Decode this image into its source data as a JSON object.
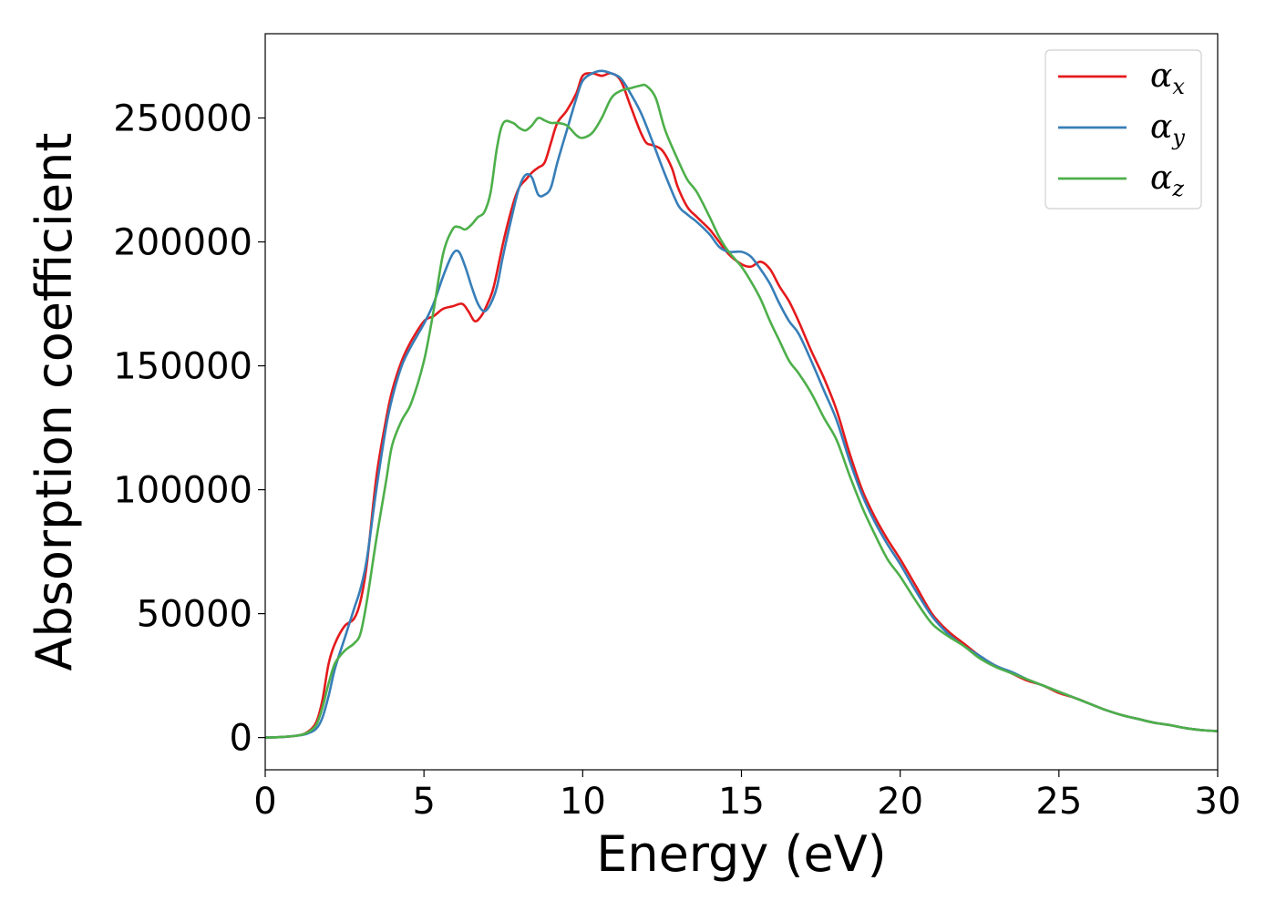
{
  "chart_data": {
    "type": "line",
    "title": "",
    "xlabel": "Energy (eV)",
    "ylabel": "Absorption coefficient",
    "xlim": [
      0,
      30
    ],
    "ylim": [
      -13000,
      284000
    ],
    "xticks": [
      0,
      5,
      10,
      15,
      20,
      25,
      30
    ],
    "yticks": [
      0,
      50000,
      100000,
      150000,
      200000,
      250000
    ],
    "grid": false,
    "legend_position": "top-right",
    "series": [
      {
        "name": "α",
        "subscript": "x",
        "color": "#e41a1c",
        "x": [
          0,
          0.5,
          1.0,
          1.3,
          1.6,
          1.8,
          2.0,
          2.2,
          2.5,
          2.8,
          3.0,
          3.2,
          3.5,
          3.8,
          4.0,
          4.3,
          4.6,
          5.0,
          5.3,
          5.6,
          5.9,
          6.2,
          6.4,
          6.6,
          6.8,
          7.0,
          7.2,
          7.5,
          7.8,
          8.0,
          8.2,
          8.4,
          8.6,
          8.8,
          9.0,
          9.2,
          9.5,
          9.8,
          10.0,
          10.3,
          10.6,
          10.9,
          11.2,
          11.5,
          11.8,
          12.0,
          12.2,
          12.5,
          12.8,
          13.0,
          13.3,
          13.6,
          14.0,
          14.3,
          14.6,
          15.0,
          15.3,
          15.6,
          15.9,
          16.2,
          16.5,
          16.8,
          17.2,
          17.6,
          18.0,
          18.4,
          18.8,
          19.2,
          19.6,
          20.0,
          20.5,
          21.0,
          21.5,
          22.0,
          22.5,
          23.0,
          23.5,
          24.0,
          24.5,
          25.0,
          25.5,
          26.0,
          26.5,
          27.0,
          27.5,
          28.0,
          28.5,
          29.0,
          29.5,
          30.0
        ],
        "y": [
          0,
          200,
          800,
          2000,
          6000,
          15000,
          30000,
          38000,
          45000,
          48000,
          55000,
          70000,
          105000,
          128000,
          140000,
          152000,
          160000,
          168000,
          170000,
          173000,
          174000,
          175000,
          172000,
          168000,
          170000,
          175000,
          182000,
          200000,
          215000,
          222000,
          225000,
          228000,
          230000,
          232000,
          240000,
          248000,
          253000,
          260000,
          267000,
          268000,
          267000,
          268000,
          265000,
          255000,
          245000,
          240000,
          239000,
          237000,
          230000,
          222000,
          214000,
          210000,
          205000,
          200000,
          195000,
          191000,
          190000,
          192000,
          189000,
          182000,
          176000,
          168000,
          156000,
          145000,
          132000,
          115000,
          100000,
          89000,
          80000,
          72000,
          61000,
          50000,
          43000,
          38000,
          33000,
          29000,
          26000,
          23000,
          21000,
          18000,
          16000,
          13500,
          11000,
          9000,
          7500,
          6000,
          5000,
          3800,
          3000,
          2600
        ]
      },
      {
        "name": "α",
        "subscript": "y",
        "color": "#377eb8",
        "x": [
          0,
          0.5,
          1.0,
          1.3,
          1.6,
          1.8,
          2.0,
          2.2,
          2.5,
          2.8,
          3.0,
          3.2,
          3.5,
          3.8,
          4.0,
          4.3,
          4.6,
          5.0,
          5.3,
          5.6,
          5.9,
          6.1,
          6.3,
          6.5,
          6.7,
          6.9,
          7.1,
          7.3,
          7.5,
          7.8,
          8.0,
          8.2,
          8.4,
          8.6,
          8.8,
          9.0,
          9.2,
          9.5,
          9.8,
          10.0,
          10.3,
          10.6,
          10.9,
          11.2,
          11.5,
          11.8,
          12.0,
          12.3,
          12.6,
          13.0,
          13.3,
          13.6,
          14.0,
          14.3,
          14.6,
          15.0,
          15.3,
          15.6,
          15.9,
          16.2,
          16.5,
          16.8,
          17.2,
          17.6,
          18.0,
          18.4,
          18.8,
          19.2,
          19.6,
          20.0,
          20.5,
          21.0,
          21.5,
          22.0,
          22.5,
          23.0,
          23.5,
          24.0,
          24.5,
          25.0,
          25.5,
          26.0,
          26.5,
          27.0,
          27.5,
          28.0,
          28.5,
          29.0,
          29.5,
          30.0
        ],
        "y": [
          0,
          200,
          800,
          1500,
          3500,
          8000,
          17000,
          28000,
          40000,
          52000,
          60000,
          72000,
          100000,
          125000,
          137000,
          150000,
          158000,
          167000,
          175000,
          186000,
          195000,
          196000,
          190000,
          182000,
          175000,
          172000,
          175000,
          182000,
          195000,
          212000,
          222000,
          227000,
          226000,
          219000,
          219000,
          222000,
          232000,
          245000,
          258000,
          265000,
          268000,
          269000,
          268000,
          266000,
          260000,
          253000,
          247000,
          237000,
          227000,
          215000,
          211000,
          208000,
          203000,
          198000,
          196000,
          196000,
          194000,
          189000,
          183000,
          175000,
          168000,
          163000,
          152000,
          140000,
          128000,
          112000,
          98000,
          87000,
          78000,
          70000,
          59000,
          49000,
          42000,
          37000,
          33000,
          29000,
          26500,
          23500,
          21000,
          18500,
          16000,
          13500,
          11000,
          9000,
          7500,
          6000,
          5000,
          3800,
          3000,
          2600
        ]
      },
      {
        "name": "α",
        "subscript": "z",
        "color": "#4daf4a",
        "x": [
          0,
          0.5,
          1.0,
          1.3,
          1.6,
          1.8,
          2.0,
          2.2,
          2.5,
          2.8,
          3.0,
          3.2,
          3.5,
          3.8,
          4.0,
          4.3,
          4.6,
          5.0,
          5.3,
          5.6,
          5.9,
          6.1,
          6.3,
          6.5,
          6.7,
          6.9,
          7.1,
          7.3,
          7.5,
          7.8,
          8.0,
          8.2,
          8.4,
          8.6,
          8.8,
          9.0,
          9.2,
          9.5,
          9.8,
          10.0,
          10.3,
          10.6,
          10.9,
          11.2,
          11.5,
          11.8,
          12.0,
          12.3,
          12.6,
          13.0,
          13.3,
          13.6,
          14.0,
          14.3,
          14.6,
          15.0,
          15.3,
          15.6,
          15.9,
          16.2,
          16.5,
          16.8,
          17.2,
          17.6,
          18.0,
          18.4,
          18.8,
          19.2,
          19.6,
          20.0,
          20.5,
          21.0,
          21.5,
          22.0,
          22.5,
          23.0,
          23.5,
          24.0,
          24.5,
          25.0,
          25.5,
          26.0,
          26.5,
          27.0,
          27.5,
          28.0,
          28.5,
          29.0,
          29.5,
          30.0
        ],
        "y": [
          0,
          200,
          800,
          1800,
          5000,
          12000,
          22000,
          30000,
          35000,
          38000,
          42000,
          55000,
          80000,
          103000,
          118000,
          128000,
          135000,
          152000,
          172000,
          195000,
          205000,
          206000,
          205000,
          207000,
          210000,
          212000,
          220000,
          238000,
          248000,
          248000,
          246000,
          245000,
          247000,
          250000,
          249000,
          248000,
          248000,
          247000,
          243000,
          242000,
          244000,
          250000,
          258000,
          261000,
          262000,
          263000,
          263000,
          258000,
          245000,
          233000,
          225000,
          220000,
          210000,
          202000,
          196000,
          190000,
          184000,
          177000,
          168000,
          160000,
          152000,
          147000,
          139000,
          129000,
          120000,
          106000,
          93000,
          82000,
          72000,
          65000,
          55000,
          46000,
          41000,
          37000,
          32000,
          28500,
          26000,
          23500,
          21000,
          18500,
          16000,
          13500,
          11000,
          9000,
          7500,
          6000,
          5000,
          3800,
          3000,
          2600
        ]
      }
    ]
  }
}
